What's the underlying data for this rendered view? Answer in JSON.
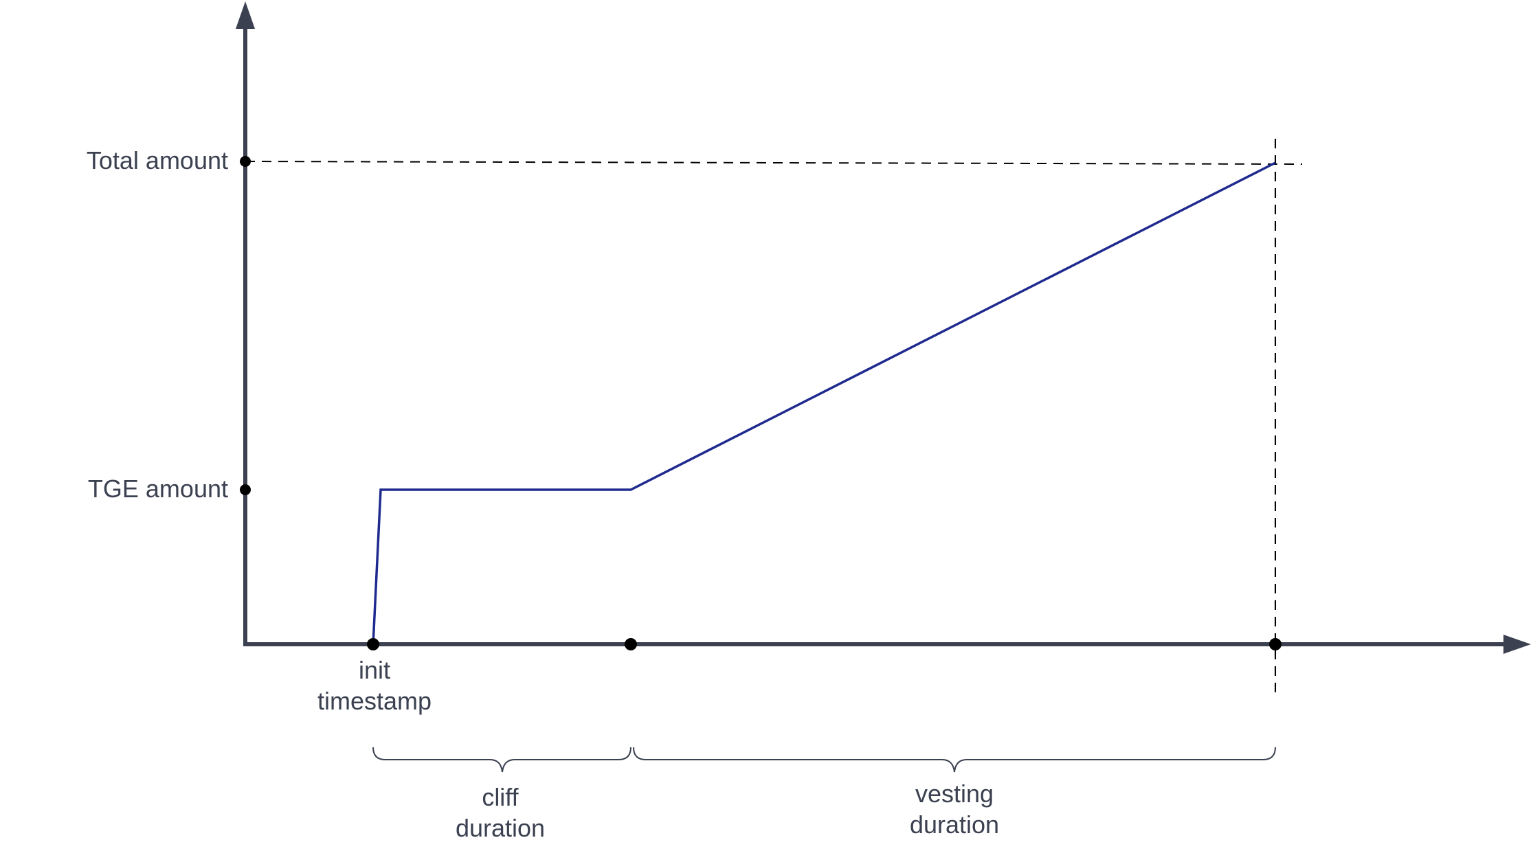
{
  "y_axis": {
    "labels": {
      "total": "Total amount",
      "tge": "TGE amount"
    }
  },
  "x_axis": {
    "labels": {
      "init_line1": "init",
      "init_line2": "timestamp"
    }
  },
  "spans": {
    "cliff": {
      "line1": "cliff",
      "line2": "duration"
    },
    "vesting": {
      "line1": "vesting",
      "line2": "duration"
    }
  },
  "colors": {
    "axis": "#3b4150",
    "curve": "#1f2a8f",
    "guide": "#000000",
    "text": "#3b4150"
  }
}
